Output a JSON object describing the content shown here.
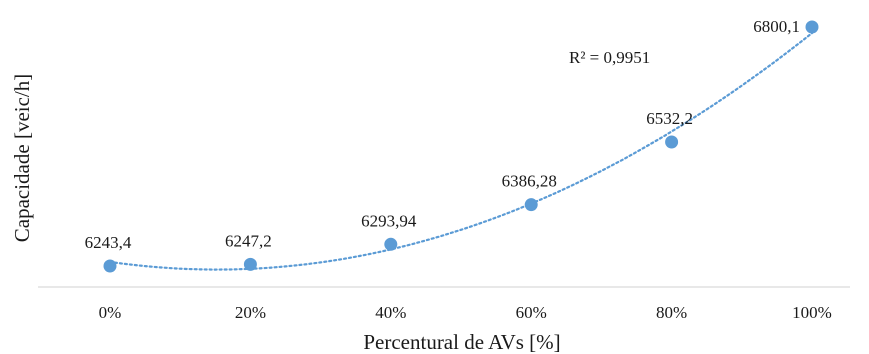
{
  "chart_data": {
    "type": "scatter",
    "categories": [
      "0%",
      "20%",
      "40%",
      "60%",
      "80%",
      "100%"
    ],
    "x": [
      0,
      20,
      40,
      60,
      80,
      100
    ],
    "values": [
      6243.4,
      6247.2,
      6293.94,
      6386.28,
      6532.2,
      6800.1
    ],
    "data_labels": [
      "6243,4",
      "6247,2",
      "6293,94",
      "6386,28",
      "6532,2",
      "6800,1"
    ],
    "trendline": {
      "type": "polynomial",
      "style": "dotted",
      "r_squared_label": "R² = 0,9951"
    },
    "xlabel": "Percentural de AVs [%]",
    "ylabel": "Capacidade  [veic/h]",
    "grid": false,
    "y_axis_ticks_visible": false,
    "colors": {
      "marker": "#5b9bd5",
      "trendline": "#5b9bd5",
      "axis": "#d9d9d9",
      "text": "#1a1a1a"
    }
  }
}
